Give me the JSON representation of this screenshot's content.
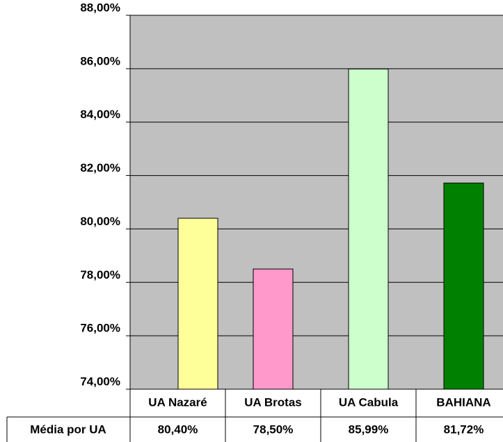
{
  "chart_data": {
    "type": "bar",
    "categories": [
      "UA Nazaré",
      "UA Brotas",
      "UA Cabula",
      "BAHIANA"
    ],
    "series": [
      {
        "name": "Média por UA",
        "colors": [
          "#ffff99",
          "#ff99cc",
          "#ccffcc",
          "#008000"
        ],
        "values": [
          80.4,
          78.5,
          85.99,
          81.72
        ],
        "value_labels": [
          "80,40%",
          "78,50%",
          "85,99%",
          "81,72%"
        ]
      }
    ],
    "ylim": [
      74,
      88
    ],
    "yticks": [
      {
        "value": 74,
        "label": "74,00%"
      },
      {
        "value": 76,
        "label": "76,00%"
      },
      {
        "value": 78,
        "label": "78,00%"
      },
      {
        "value": 80,
        "label": "80,00%"
      },
      {
        "value": 82,
        "label": "82,00%"
      },
      {
        "value": 84,
        "label": "84,00%"
      },
      {
        "value": 86,
        "label": "86,00%"
      },
      {
        "value": 88,
        "label": "88,00%"
      }
    ],
    "grid": true,
    "plot_background": "#c0c0c0",
    "data_table": true
  }
}
